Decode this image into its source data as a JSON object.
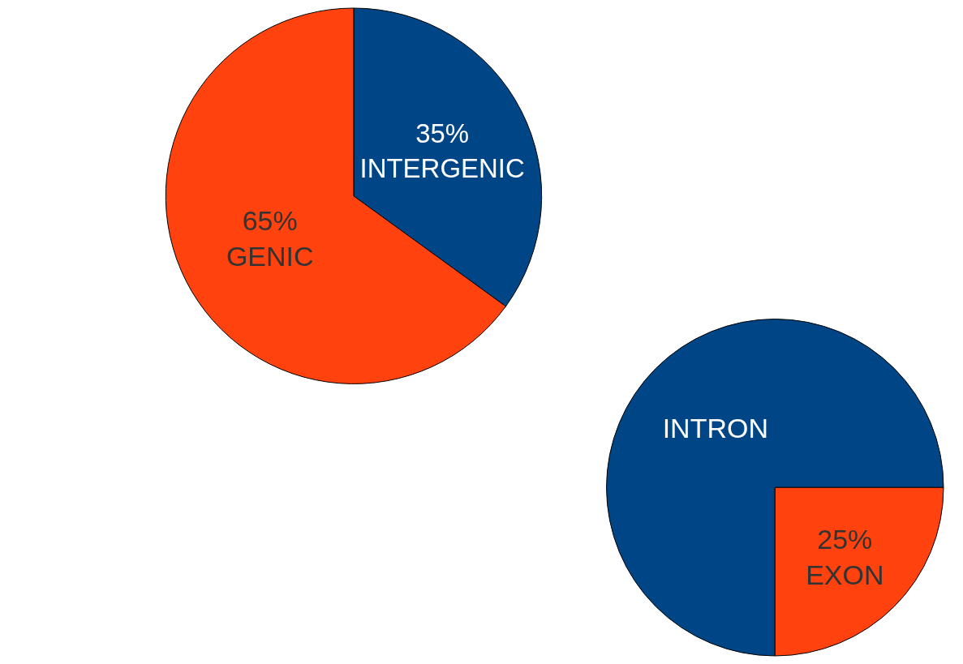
{
  "chart_data": [
    {
      "type": "pie",
      "categories": [
        "INTERGENIC",
        "GENIC"
      ],
      "values": [
        35,
        65
      ],
      "colors": [
        "#004586",
        "#ff420e"
      ],
      "value_labels": [
        "35%",
        "65%"
      ]
    },
    {
      "type": "pie",
      "categories": [
        "INTRON",
        "EXON"
      ],
      "values": [
        75,
        25
      ],
      "colors": [
        "#004586",
        "#ff420e"
      ],
      "value_labels": [
        null,
        "25%"
      ]
    }
  ]
}
